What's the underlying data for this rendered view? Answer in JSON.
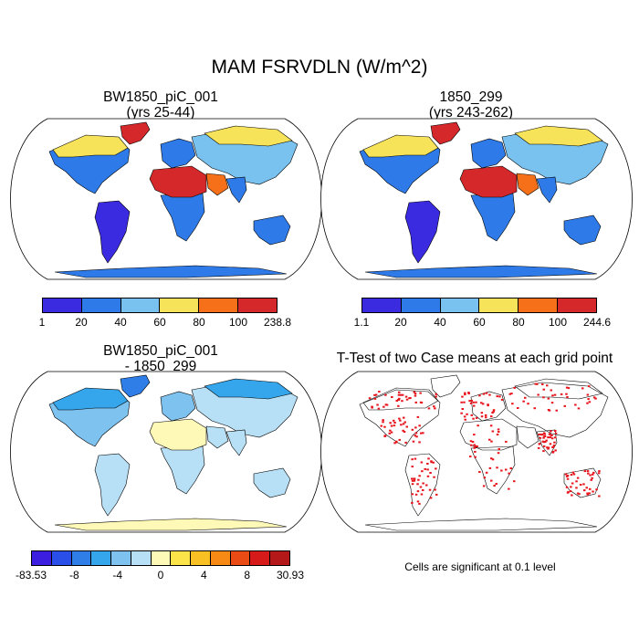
{
  "title": "MAM FSRVDLN (W/m^2)",
  "colors": {
    "land_outline": "#000000",
    "sig_red": "#e8141c"
  },
  "chart_data": [
    {
      "type": "map",
      "panel": "top-left",
      "title_line1": "BW1850_piC_001",
      "title_line2": "(yrs 25-44)",
      "field": "FSRVDLN",
      "units": "W/m^2",
      "colorbar": {
        "colors": [
          "#3b2be0",
          "#2e7ae8",
          "#79c2ef",
          "#f7e35a",
          "#f6701a",
          "#d5282a"
        ],
        "labels": [
          "1",
          "20",
          "40",
          "60",
          "80",
          "100",
          "238.8"
        ]
      },
      "region_levels": {
        "ocean": "none",
        "north_america": 1,
        "canada_north": 3,
        "greenland": 5,
        "south_america": 0,
        "sahara": 5,
        "africa_south": 1,
        "arabia": 4,
        "europe": 1,
        "asia": 2,
        "siberia": 3,
        "india": 1,
        "australia": 1,
        "antarctica": 1
      }
    },
    {
      "type": "map",
      "panel": "top-right",
      "title_line1": "1850_299",
      "title_line2": "(yrs 243-262)",
      "field": "FSRVDLN",
      "units": "W/m^2",
      "colorbar": {
        "colors": [
          "#3b2be0",
          "#2e7ae8",
          "#79c2ef",
          "#f7e35a",
          "#f6701a",
          "#d5282a"
        ],
        "labels": [
          "1.1",
          "20",
          "40",
          "60",
          "80",
          "100",
          "244.6"
        ]
      },
      "region_levels": {
        "ocean": "none",
        "north_america": 1,
        "canada_north": 3,
        "greenland": 5,
        "south_america": 0,
        "sahara": 5,
        "africa_south": 1,
        "arabia": 4,
        "europe": 1,
        "asia": 2,
        "siberia": 3,
        "india": 1,
        "australia": 1,
        "antarctica": 1
      }
    },
    {
      "type": "map",
      "panel": "bottom-left",
      "title_line1": "BW1850_piC_001",
      "title_line2": "- 1850_299",
      "field": "difference",
      "colorbar": {
        "colors": [
          "#3b1ee0",
          "#2a4ee8",
          "#2f7de6",
          "#35a5ec",
          "#7ec2f0",
          "#b7dff5",
          "#fff9b8",
          "#fbe34a",
          "#f8c022",
          "#f68a14",
          "#ea4a14",
          "#d61a1a",
          "#b51818"
        ],
        "labels": [
          "-83.53",
          "-8",
          "-4",
          "0",
          "4",
          "8",
          "30.93"
        ]
      },
      "region_levels": {
        "ocean": "none",
        "north_america": 4,
        "canada_north": 3,
        "greenland": 2,
        "south_america": 5,
        "sahara": 6,
        "africa_south": 5,
        "arabia": 5,
        "europe": 4,
        "asia": 5,
        "siberia": 3,
        "india": 5,
        "australia": 5,
        "antarctica": 6
      }
    },
    {
      "type": "map",
      "panel": "bottom-right",
      "title": "T-Test of two Case means at each grid point",
      "note": "Cells are significant at 0.1 level",
      "significance_level": 0.1
    }
  ]
}
